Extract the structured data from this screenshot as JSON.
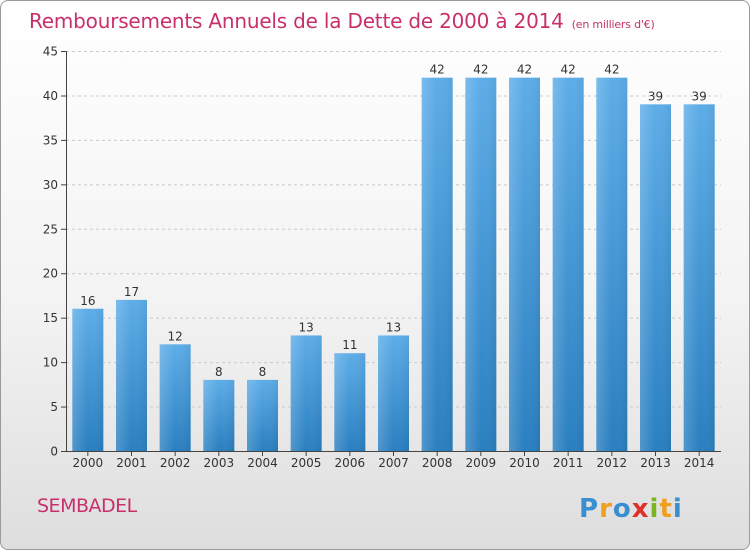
{
  "title": "Remboursements Annuels de la Dette de 2000 à 2014",
  "title_unit": "(en milliers d'€)",
  "commune": "SEMBADEL",
  "brand": "Proxiti",
  "colors": {
    "title": "#c8306a",
    "bar_top": "#5dade8",
    "bar_bottom": "#2a7fc0",
    "grid": "#c9c9c9"
  },
  "chart_data": {
    "type": "bar",
    "title": "Remboursements Annuels de la Dette de 2000 à 2014",
    "subtitle": "(en milliers d'€)",
    "xlabel": "",
    "ylabel": "",
    "categories": [
      "2000",
      "2001",
      "2002",
      "2003",
      "2004",
      "2005",
      "2006",
      "2007",
      "2008",
      "2009",
      "2010",
      "2011",
      "2012",
      "2013",
      "2014"
    ],
    "values": [
      16,
      17,
      12,
      8,
      8,
      13,
      11,
      13,
      42,
      42,
      42,
      42,
      42,
      39,
      39
    ],
    "ylim": [
      0,
      45
    ],
    "yticks": [
      0,
      5,
      10,
      15,
      20,
      25,
      30,
      35,
      40,
      45
    ],
    "grid": true,
    "data_labels": true
  }
}
